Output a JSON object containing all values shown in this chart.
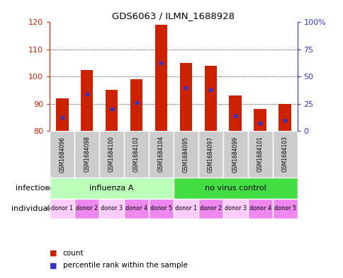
{
  "title": "GDS6063 / ILMN_1688928",
  "samples": [
    "GSM1684096",
    "GSM1684098",
    "GSM1684100",
    "GSM1684102",
    "GSM1684104",
    "GSM1684095",
    "GSM1684097",
    "GSM1684099",
    "GSM1684101",
    "GSM1684103"
  ],
  "bar_tops": [
    92.0,
    102.5,
    95.0,
    99.0,
    119.0,
    105.0,
    104.0,
    93.0,
    88.0,
    90.0
  ],
  "bar_bottom": 80.0,
  "blue_values": [
    85.0,
    93.5,
    88.0,
    90.5,
    105.0,
    96.0,
    95.0,
    85.5,
    83.0,
    84.0
  ],
  "ylim_left": [
    80,
    120
  ],
  "ylim_right": [
    0,
    100
  ],
  "yticks_left": [
    80,
    90,
    100,
    110,
    120
  ],
  "yticks_right": [
    0,
    25,
    50,
    75,
    100
  ],
  "ytick_labels_right": [
    "0",
    "25",
    "50",
    "75",
    "100%"
  ],
  "bar_color": "#cc2200",
  "blue_color": "#3333cc",
  "infection_groups": [
    {
      "label": "influenza A",
      "start": 0,
      "end": 5,
      "color": "#bbffbb"
    },
    {
      "label": "no virus control",
      "start": 5,
      "end": 10,
      "color": "#44dd44"
    }
  ],
  "individual_labels": [
    "donor 1",
    "donor 2",
    "donor 3",
    "donor 4",
    "donor 5",
    "donor 1",
    "donor 2",
    "donor 3",
    "donor 4",
    "donor 5"
  ],
  "individual_colors": [
    "#ffccff",
    "#ee88ee",
    "#ffccff",
    "#ee88ee",
    "#ee88ee",
    "#ffccff",
    "#ee88ee",
    "#ffccff",
    "#ee88ee",
    "#ee88ee"
  ],
  "gsm_box_color": "#cccccc",
  "left_label_color": "#cc2200",
  "right_label_color": "#3333cc",
  "label_infection": "infection",
  "label_individual": "individual",
  "legend_count": "count",
  "legend_percentile": "percentile rank within the sample",
  "arrow_color": "#888888"
}
